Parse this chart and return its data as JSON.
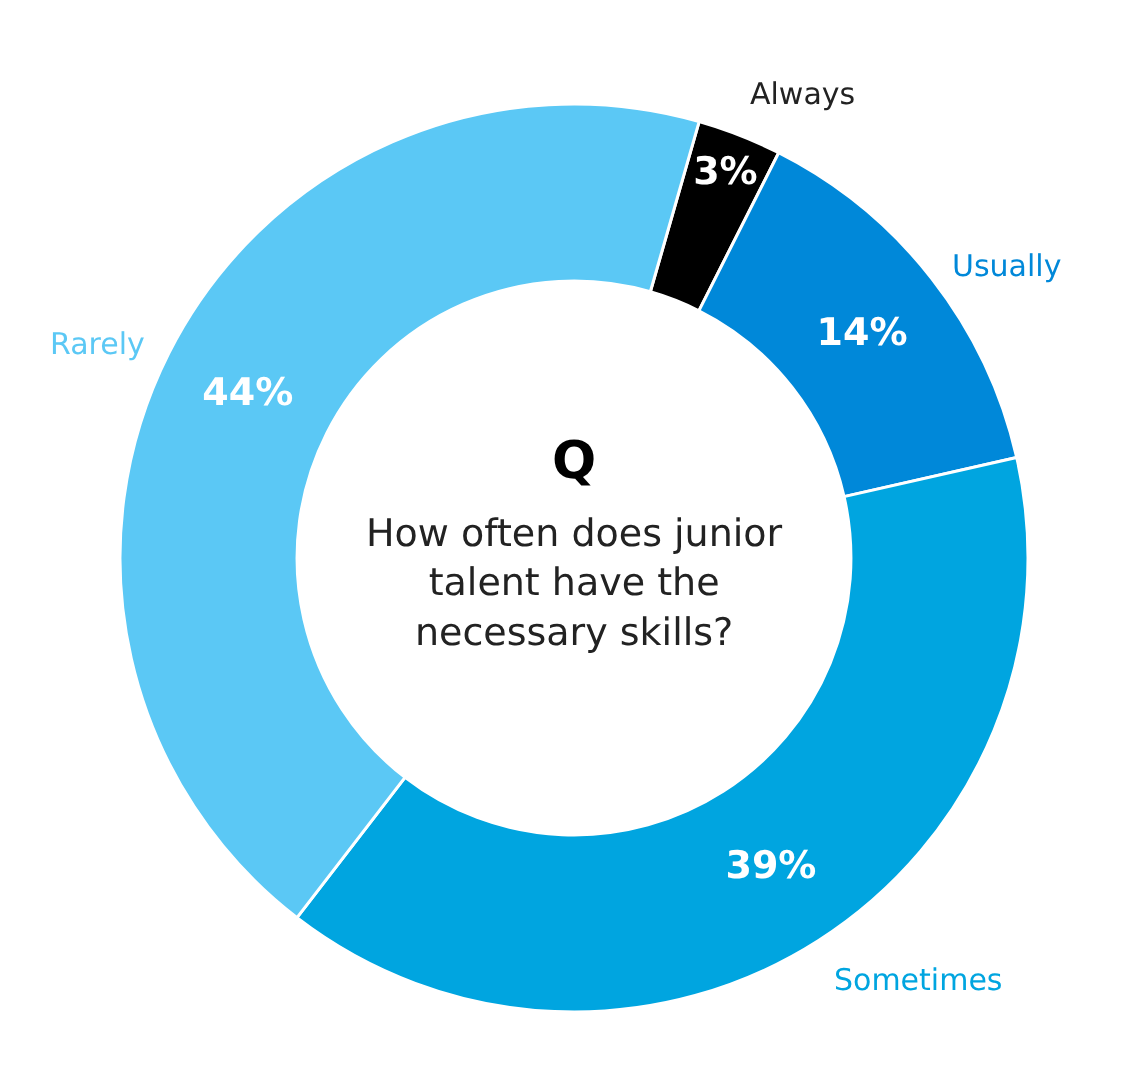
{
  "chart_data": {
    "type": "donut",
    "title": "How often does junior talent have the necessary skills?",
    "categories": [
      "Always",
      "Usually",
      "Sometimes",
      "Rarely"
    ],
    "values": [
      3,
      14,
      39,
      44
    ],
    "colors": [
      "#000000",
      "#0088d9",
      "#00a5e0",
      "#5bc8f5"
    ],
    "value_labels": [
      "3%",
      "14%",
      "39%",
      "44%"
    ],
    "annotations": [
      "Q"
    ],
    "legend": false
  }
}
